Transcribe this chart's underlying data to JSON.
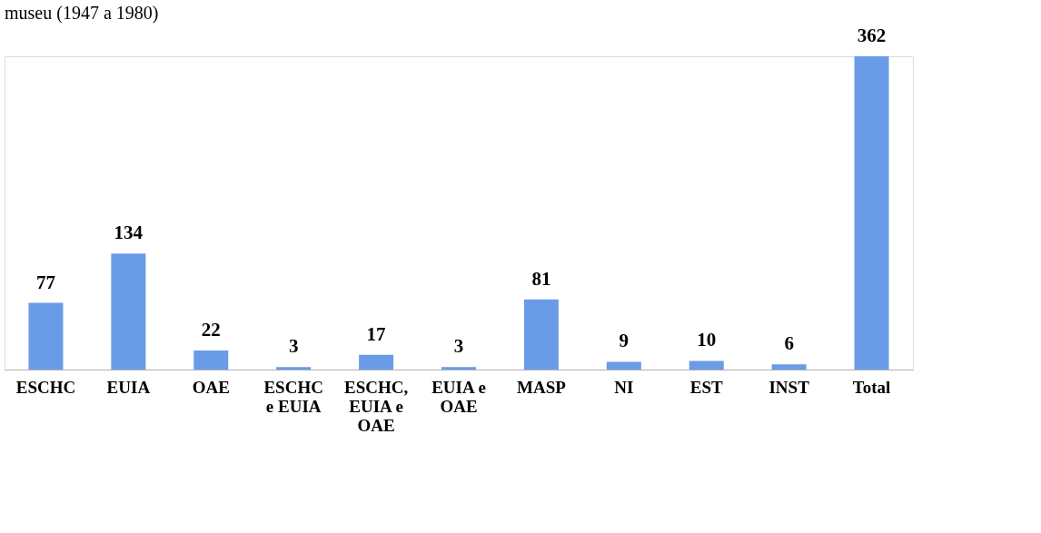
{
  "chart_data": {
    "type": "bar",
    "title": "museu (1947 a 1980)",
    "categories": [
      "ESCHC",
      "EUIA",
      "OAE",
      "ESCHC e EUIA",
      "ESCHC, EUIA e OAE",
      "EUIA e OAE",
      "MASP",
      "NI",
      "EST",
      "INST",
      "Total"
    ],
    "values": [
      77,
      134,
      22,
      3,
      17,
      3,
      81,
      9,
      10,
      6,
      362
    ],
    "color": "#6a9be6",
    "data_labels": true,
    "grid": false
  }
}
